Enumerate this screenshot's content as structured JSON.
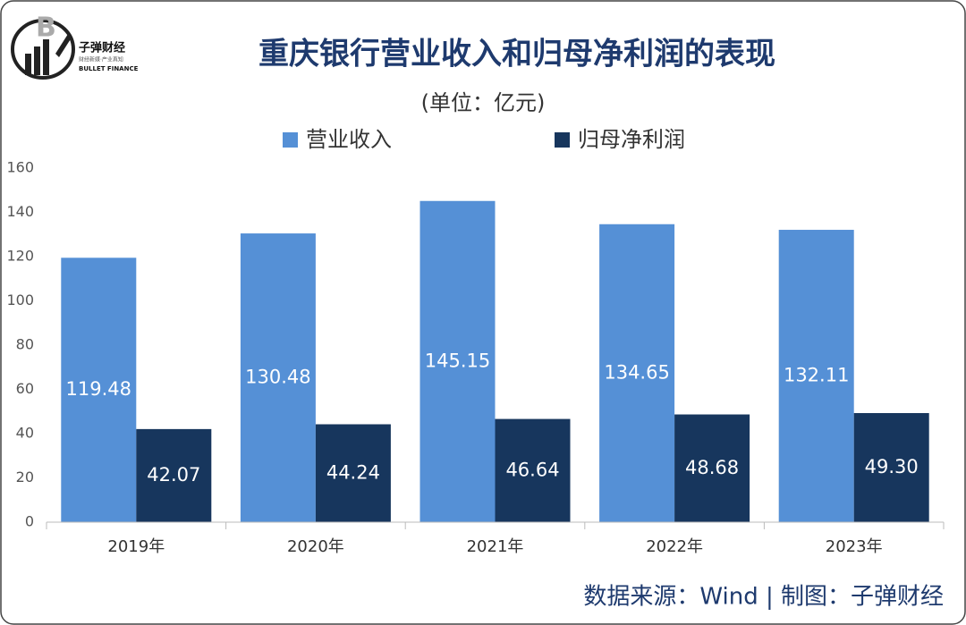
{
  "chart_data": {
    "type": "bar",
    "title": "重庆银行营业收入和归母净利润的表现",
    "subtitle": "(单位：亿元)",
    "categories": [
      "2019年",
      "2020年",
      "2021年",
      "2022年",
      "2023年"
    ],
    "series": [
      {
        "name": "营业收入",
        "color": "#5590d6",
        "values": [
          119.48,
          130.48,
          145.15,
          134.65,
          132.11
        ],
        "value_labels": [
          "119.48",
          "130.48",
          "145.15",
          "134.65",
          "132.11"
        ]
      },
      {
        "name": "归母净利润",
        "color": "#17365d",
        "values": [
          42.07,
          44.24,
          46.64,
          48.68,
          49.3
        ],
        "value_labels": [
          "42.07",
          "44.24",
          "46.64",
          "48.68",
          "49.30"
        ]
      }
    ],
    "ylim": [
      0,
      160
    ],
    "yticks": [
      0,
      20,
      40,
      60,
      80,
      100,
      120,
      140,
      160
    ],
    "grid": false,
    "legend": "top",
    "source": "数据来源：Wind  |  制图：子弹财经"
  },
  "logo": {
    "name": "子弹财经",
    "tagline": "财经新媒·产业真知",
    "english": "BULLET FINANCE"
  }
}
